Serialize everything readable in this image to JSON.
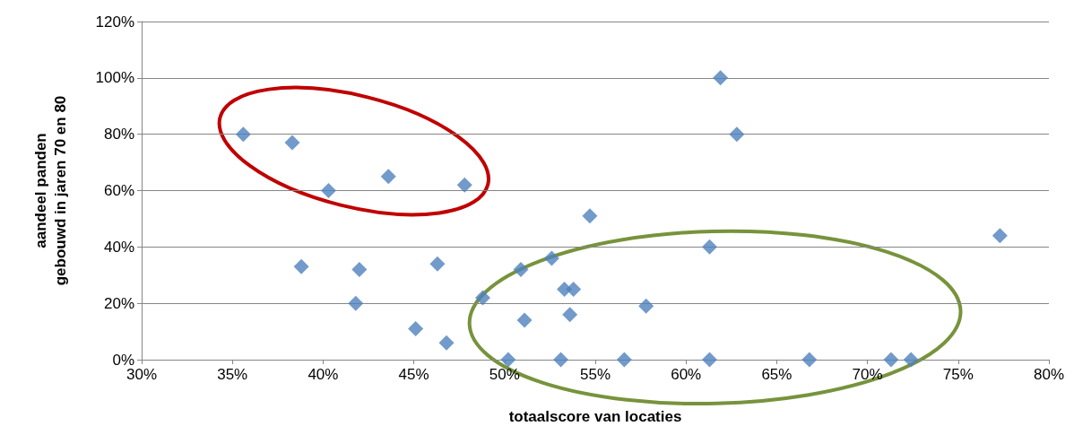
{
  "chart_data": {
    "type": "scatter",
    "xlabel": "totaalscore van locaties",
    "ylabel": "aandeel panden\ngebouwd in jaren 70 en 80",
    "x": [
      35.6,
      38.3,
      40.3,
      43.6,
      47.8,
      38.8,
      42.0,
      41.8,
      46.3,
      45.1,
      46.8,
      48.8,
      50.2,
      50.9,
      51.1,
      52.6,
      53.1,
      53.3,
      53.8,
      53.6,
      54.7,
      56.6,
      57.8,
      61.3,
      61.3,
      61.9,
      62.8,
      66.8,
      71.3,
      72.4,
      77.3
    ],
    "series": [
      {
        "color": "#4f81bd",
        "values": [
          80,
          77,
          60,
          65,
          62,
          33,
          32,
          20,
          34,
          11,
          6,
          22,
          0,
          32,
          14,
          36,
          0,
          25,
          25,
          16,
          51,
          0,
          19,
          40,
          0,
          100,
          80,
          0,
          0,
          0,
          44
        ]
      }
    ],
    "xlim": [
      30,
      80
    ],
    "xticks": [
      {
        "value": 30,
        "label": "30%"
      },
      {
        "value": 35,
        "label": "35%"
      },
      {
        "value": 40,
        "label": "40%"
      },
      {
        "value": 45,
        "label": "45%"
      },
      {
        "value": 50,
        "label": "50%"
      },
      {
        "value": 55,
        "label": "55%"
      },
      {
        "value": 60,
        "label": "60%"
      },
      {
        "value": 65,
        "label": "65%"
      },
      {
        "value": 70,
        "label": "70%"
      },
      {
        "value": 75,
        "label": "75%"
      },
      {
        "value": 80,
        "label": "80%"
      }
    ],
    "ylim": [
      0,
      120
    ],
    "yticks": [
      {
        "value": 0,
        "label": "0%"
      },
      {
        "value": 20,
        "label": "20%"
      },
      {
        "value": 40,
        "label": "40%"
      },
      {
        "value": 60,
        "label": "60%"
      },
      {
        "value": 80,
        "label": "80%"
      },
      {
        "value": 100,
        "label": "100%"
      },
      {
        "value": 120,
        "label": "120%"
      }
    ],
    "grid": "y",
    "marker": "diamond"
  }
}
